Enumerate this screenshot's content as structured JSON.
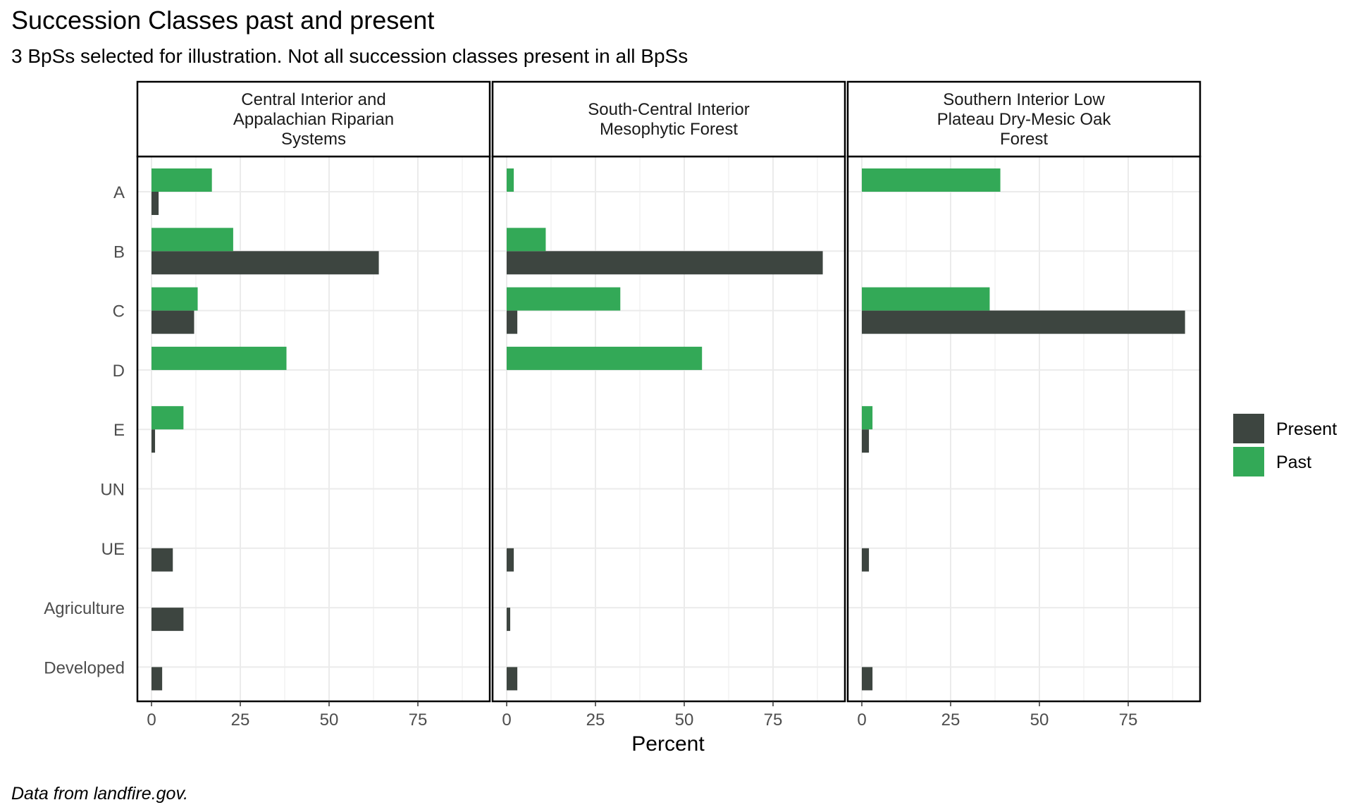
{
  "title": "Succession Classes past and present",
  "subtitle": "3 BpSs selected for illustration. Not all succession classes present in all BpSs",
  "caption": "Data from landfire.gov.",
  "chart_data": {
    "type": "bar",
    "orientation": "horizontal",
    "xlabel": "Percent",
    "xlim": [
      0,
      95
    ],
    "xticks": [
      0,
      25,
      50,
      75
    ],
    "grid": true,
    "legend_position": "right",
    "categories": [
      "A",
      "B",
      "C",
      "D",
      "E",
      "UN",
      "UE",
      "Agriculture",
      "Developed"
    ],
    "series_colors": {
      "Present": "#3d4540",
      "Past": "#33a957"
    },
    "legend": [
      {
        "name": "Present",
        "color": "#3d4540"
      },
      {
        "name": "Past",
        "color": "#33a957"
      }
    ],
    "panels": [
      {
        "label": [
          "Central Interior and",
          "Appalachian Riparian",
          "Systems"
        ],
        "series": [
          {
            "name": "Present",
            "values": [
              2,
              64,
              12,
              0,
              1,
              0,
              6,
              9,
              3
            ]
          },
          {
            "name": "Past",
            "values": [
              17,
              23,
              13,
              38,
              9,
              0,
              0,
              0,
              0
            ]
          }
        ]
      },
      {
        "label": [
          "South-Central Interior",
          "Mesophytic Forest"
        ],
        "series": [
          {
            "name": "Present",
            "values": [
              0,
              89,
              3,
              0,
              0,
              0,
              2,
              1,
              3
            ]
          },
          {
            "name": "Past",
            "values": [
              2,
              11,
              32,
              55,
              0,
              0,
              0,
              0,
              0
            ]
          }
        ]
      },
      {
        "label": [
          "Southern Interior Low",
          "Plateau Dry-Mesic Oak",
          "Forest"
        ],
        "series": [
          {
            "name": "Present",
            "values": [
              0,
              0,
              91,
              0,
              2,
              0,
              2,
              0,
              3
            ]
          },
          {
            "name": "Past",
            "values": [
              39,
              0,
              36,
              0,
              3,
              0,
              0,
              0,
              0
            ]
          }
        ]
      }
    ]
  }
}
